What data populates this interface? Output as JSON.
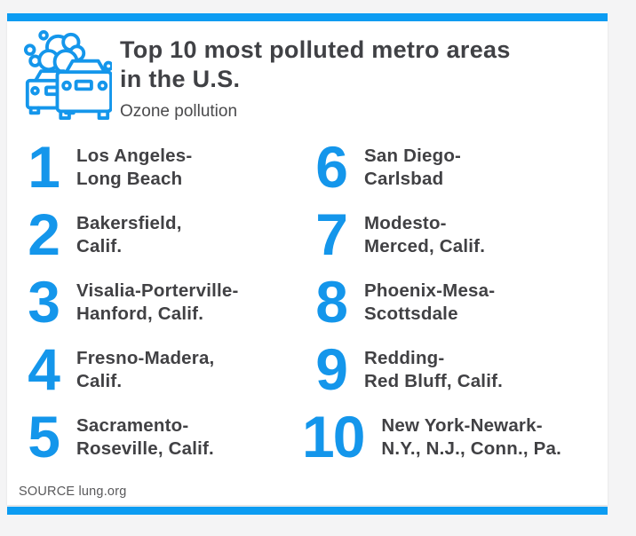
{
  "theme": {
    "bar_blue": "#0c9cf2",
    "accent_blue": "#1496eb",
    "text_dark": "#404145",
    "muted_gray": "#59595b",
    "page_bg": "#f4f4f5",
    "card_bg": "#ffffff"
  },
  "header": {
    "title_line1": "Top 10 most polluted metro areas",
    "title_line2": "in the U.S.",
    "subtitle": "Ozone pollution",
    "icon": "traffic-smog-icon"
  },
  "items": [
    {
      "rank": "1",
      "line1": "Los Angeles-",
      "line2": "Long Beach"
    },
    {
      "rank": "2",
      "line1": "Bakersfield,",
      "line2": "Calif."
    },
    {
      "rank": "3",
      "line1": "Visalia-Porterville-",
      "line2": "Hanford, Calif."
    },
    {
      "rank": "4",
      "line1": "Fresno-Madera,",
      "line2": "Calif."
    },
    {
      "rank": "5",
      "line1": "Sacramento-",
      "line2": "Roseville, Calif."
    },
    {
      "rank": "6",
      "line1": "San Diego-",
      "line2": "Carlsbad"
    },
    {
      "rank": "7",
      "line1": "Modesto-",
      "line2": "Merced, Calif."
    },
    {
      "rank": "8",
      "line1": "Phoenix-Mesa-",
      "line2": "Scottsdale"
    },
    {
      "rank": "9",
      "line1": "Redding-",
      "line2": "Red Bluff, Calif."
    },
    {
      "rank": "10",
      "line1": "New York-Newark-",
      "line2": "N.Y., N.J., Conn., Pa."
    }
  ],
  "footer": {
    "source_label": "SOURCE",
    "source_value": "lung.org"
  },
  "chart_data": {
    "type": "table",
    "title": "Top 10 most polluted metro areas in the U.S.",
    "subtitle": "Ozone pollution",
    "columns": [
      "rank",
      "metro_area"
    ],
    "rows": [
      [
        1,
        "Los Angeles-Long Beach"
      ],
      [
        2,
        "Bakersfield, Calif."
      ],
      [
        3,
        "Visalia-Porterville-Hanford, Calif."
      ],
      [
        4,
        "Fresno-Madera, Calif."
      ],
      [
        5,
        "Sacramento-Roseville, Calif."
      ],
      [
        6,
        "San Diego-Carlsbad"
      ],
      [
        7,
        "Modesto-Merced, Calif."
      ],
      [
        8,
        "Phoenix-Mesa-Scottsdale"
      ],
      [
        9,
        "Redding-Red Bluff, Calif."
      ],
      [
        10,
        "New York-Newark-N.Y., N.J., Conn., Pa."
      ]
    ],
    "source": "lung.org",
    "layout": "two-column ranked list, ranks 1-5 left column, 6-10 right column"
  }
}
